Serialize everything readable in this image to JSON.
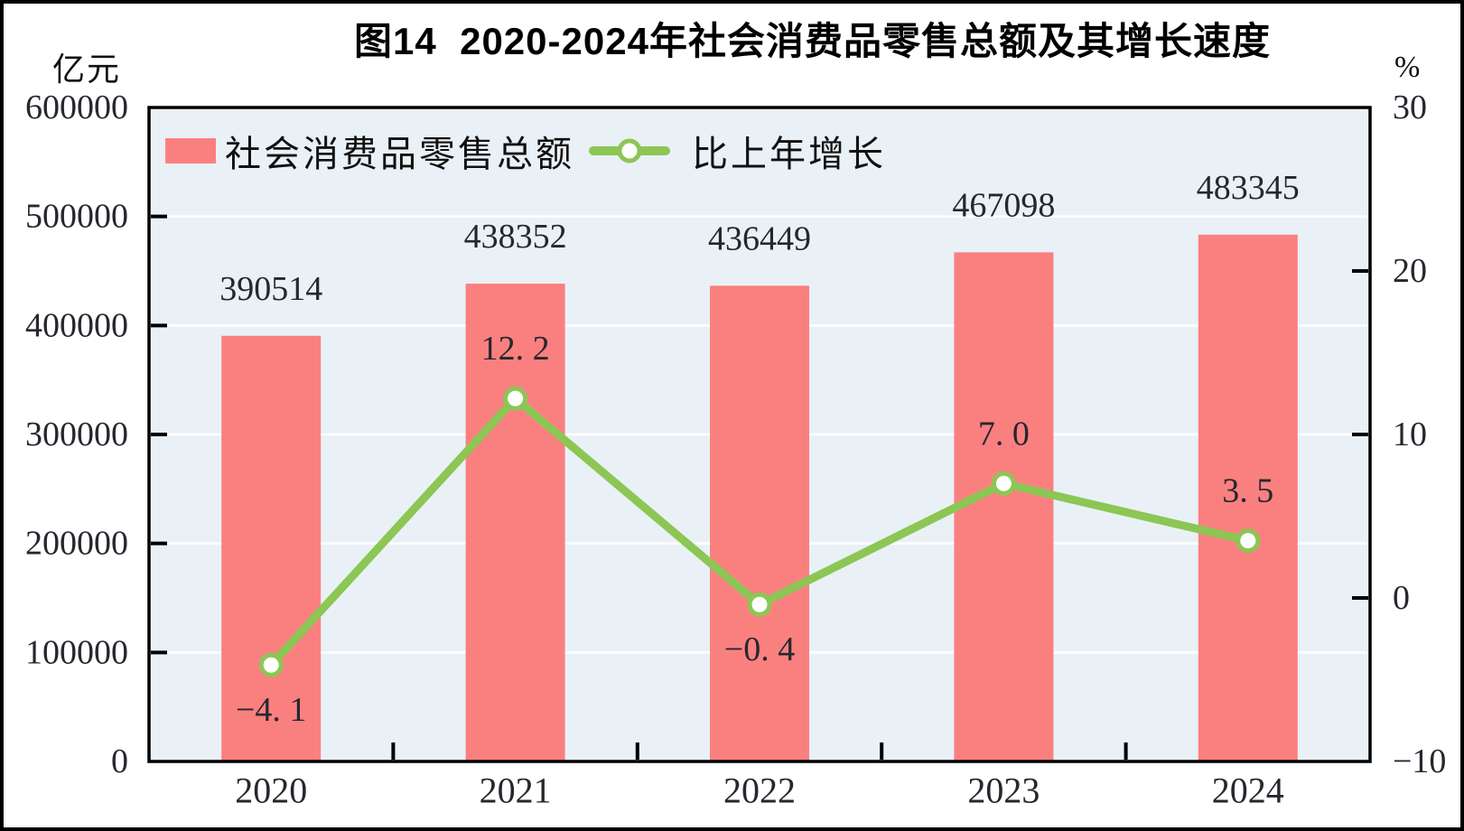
{
  "figure": {
    "title": "图14  2020-2024年社会消费品零售总额及其增长速度",
    "left_axis_unit": "亿元",
    "right_axis_unit": "%"
  },
  "legend": {
    "bar_label": "社会消费品零售总额",
    "line_label": "比上年增长"
  },
  "chart_data": {
    "type": "bar",
    "subtype": "bar-line combo with dual value axes",
    "title": "图14  2020-2024年社会消费品零售总额及其增长速度",
    "categories": [
      "2020",
      "2021",
      "2022",
      "2023",
      "2024"
    ],
    "series": [
      {
        "name": "社会消费品零售总额",
        "type": "bar",
        "axis": "left",
        "unit": "亿元",
        "values": [
          390514,
          438352,
          436449,
          467098,
          483345
        ],
        "labels": [
          "390514",
          "438352",
          "436449",
          "467098",
          "483345"
        ],
        "color": "#FA8080"
      },
      {
        "name": "比上年增长",
        "type": "line",
        "axis": "right",
        "unit": "%",
        "values": [
          -4.1,
          12.2,
          -0.4,
          7.0,
          3.5
        ],
        "labels": [
          "−4. 1",
          "12. 2",
          "−0. 4",
          "7. 0",
          "3. 5"
        ],
        "label_positions": [
          "below",
          "above",
          "below",
          "above",
          "above"
        ],
        "color": "#8CC654",
        "marker": "circle-white-fill-green-ring"
      }
    ],
    "left_axis": {
      "label": "亿元",
      "min": 0,
      "max": 600000,
      "step": 100000,
      "ticks": [
        "600000",
        "500000",
        "400000",
        "300000",
        "200000",
        "100000",
        "0"
      ]
    },
    "right_axis": {
      "label": "%",
      "min": -10,
      "max": 30,
      "step": 10,
      "ticks": [
        "30",
        "20",
        "10",
        "0",
        "−10"
      ]
    },
    "x_axis": {
      "ticks": [
        "2020",
        "2021",
        "2022",
        "2023",
        "2024"
      ]
    },
    "grid": "horizontal white gridlines on light plot background",
    "legend_position": "top-left inside plot area",
    "colors": {
      "bar": "#FA8080",
      "line": "#8CC654",
      "plot_background": "#EAF1F6",
      "gridline": "#FFFFFF",
      "frame": "#000000",
      "text": "#26272E"
    }
  }
}
